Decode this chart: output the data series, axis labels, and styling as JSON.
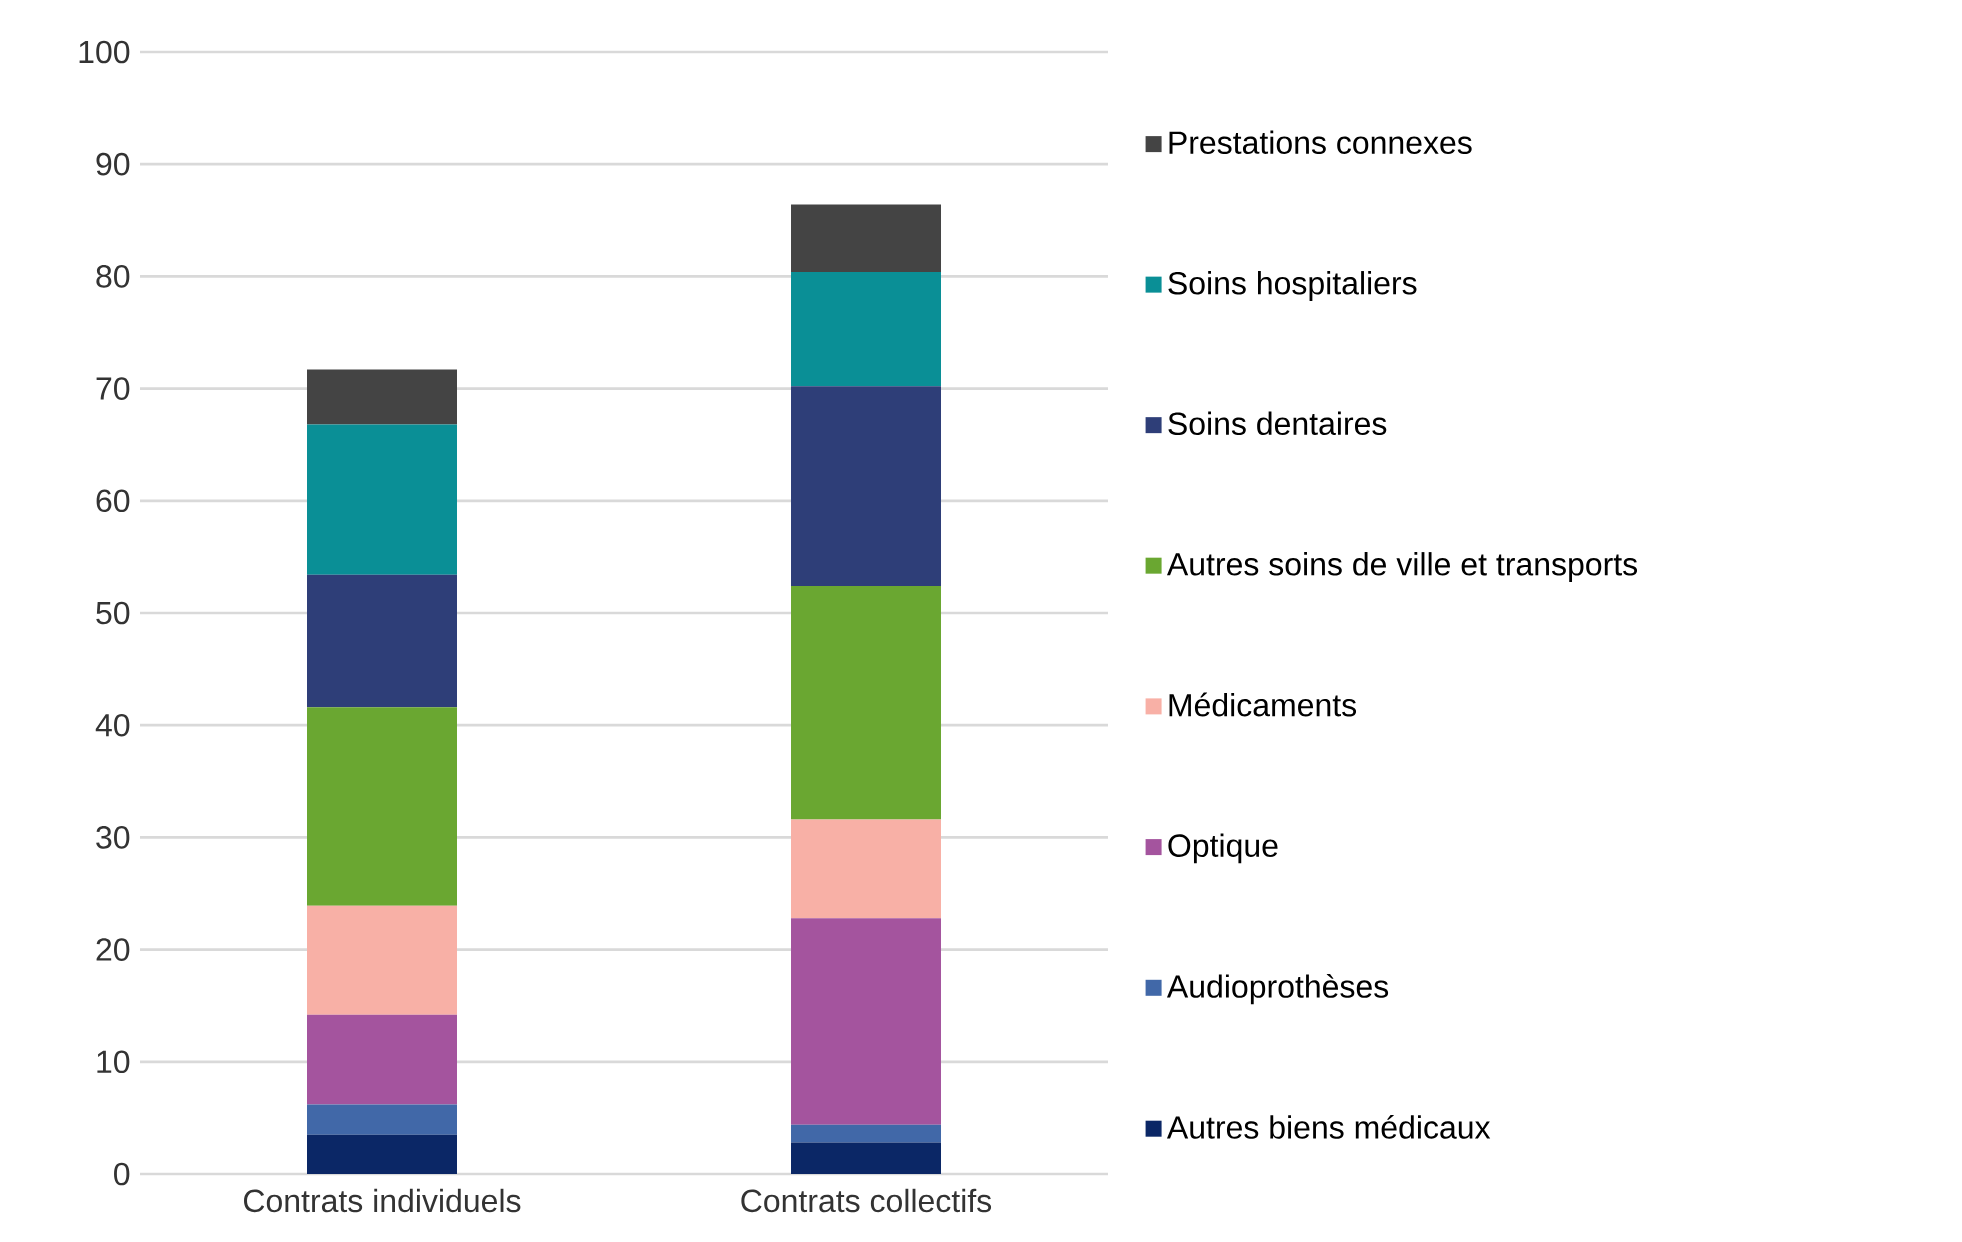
{
  "chart_data": {
    "type": "bar",
    "stacked": true,
    "categories": [
      "Contrats individuels",
      "Contrats collectifs"
    ],
    "series": [
      {
        "name": "Autres biens médicaux",
        "color": "#0b2766",
        "values": [
          3.5,
          2.8
        ]
      },
      {
        "name": "Audioprothèses",
        "color": "#4168a8",
        "values": [
          2.7,
          1.6
        ]
      },
      {
        "name": "Optique",
        "color": "#a4549e",
        "values": [
          8.0,
          18.4
        ]
      },
      {
        "name": "Médicaments",
        "color": "#f8b0a6",
        "values": [
          9.7,
          8.8
        ]
      },
      {
        "name": "Autres soins de ville et transports",
        "color": "#6aa731",
        "values": [
          17.7,
          20.8
        ]
      },
      {
        "name": "Soins dentaires",
        "color": "#2e3e78",
        "values": [
          11.8,
          17.8
        ]
      },
      {
        "name": "Soins hospitaliers",
        "color": "#0a8f96",
        "values": [
          13.4,
          10.2
        ]
      },
      {
        "name": "Prestations connexes",
        "color": "#444444",
        "values": [
          4.9,
          6.0
        ]
      }
    ],
    "ylim": [
      0,
      100
    ],
    "yticks": [
      0,
      10,
      20,
      30,
      40,
      50,
      60,
      70,
      80,
      90,
      100
    ],
    "grid": "y",
    "legend": "right"
  }
}
